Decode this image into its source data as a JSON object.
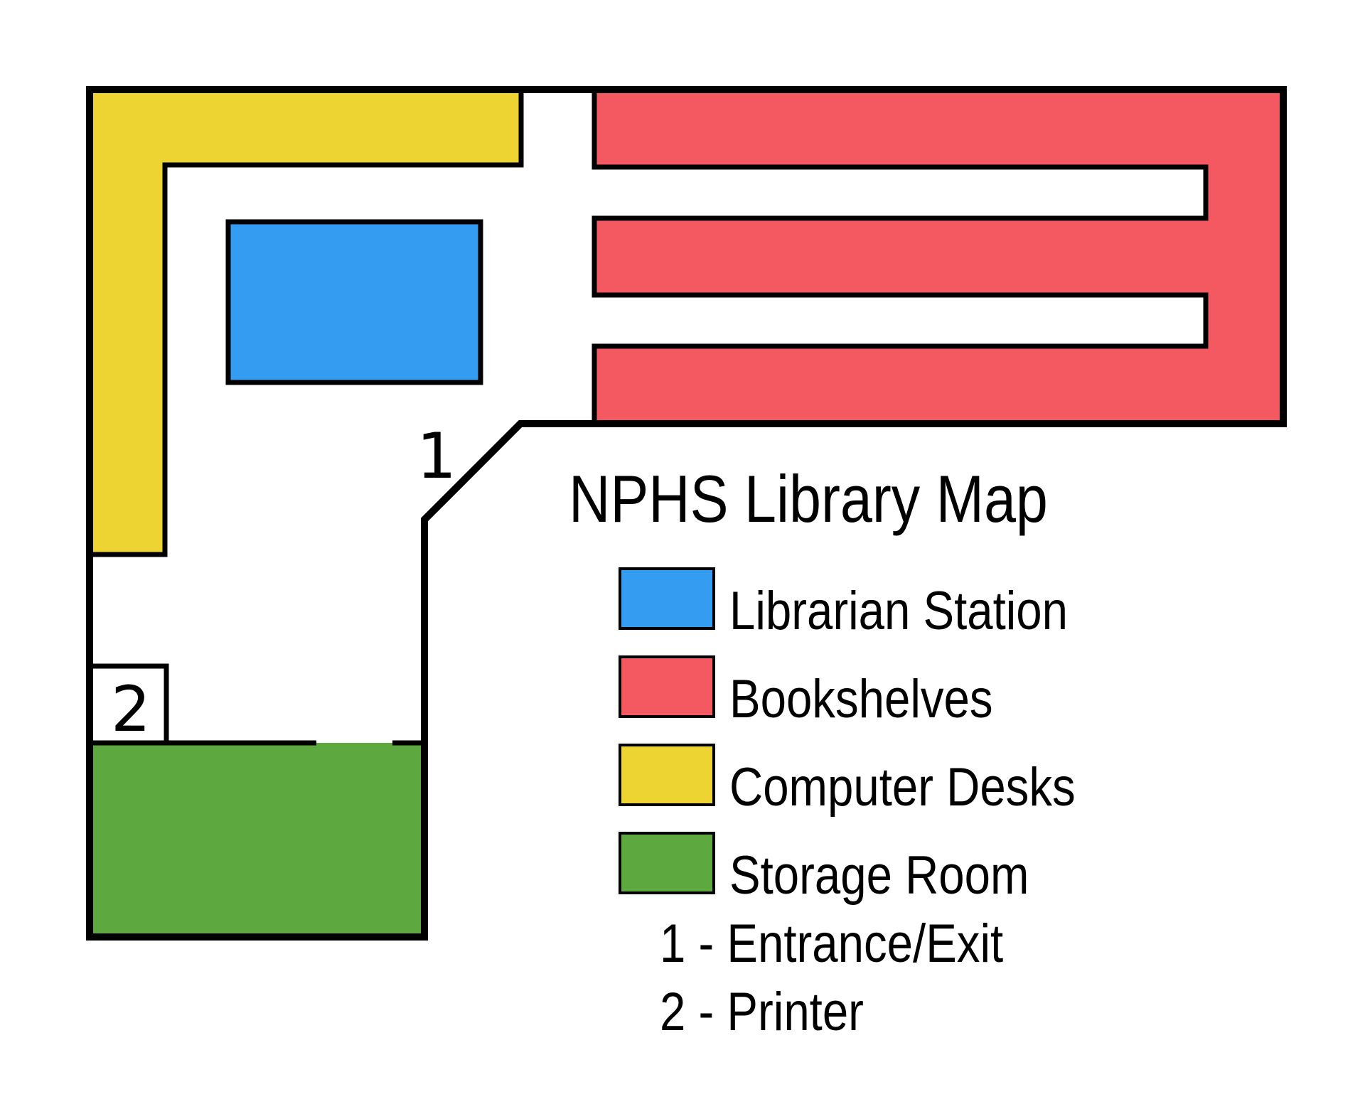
{
  "title": "NPHS Library Map",
  "map": {
    "entrance_marker": "1",
    "printer_marker": "2"
  },
  "colors": {
    "librarian_station": "#349DF2",
    "bookshelves": "#F45962",
    "computer_desks": "#EED432",
    "storage_room": "#5DA940",
    "outline": "#000000",
    "floor": "#FFFFFF"
  },
  "legend": [
    {
      "key": "librarian_station",
      "label": "Librarian Station"
    },
    {
      "key": "bookshelves",
      "label": "Bookshelves"
    },
    {
      "key": "computer_desks",
      "label": "Computer Desks"
    },
    {
      "key": "storage_room",
      "label": "Storage Room"
    }
  ],
  "notes": [
    {
      "label": "1 - Entrance/Exit"
    },
    {
      "label": "2 - Printer"
    }
  ]
}
